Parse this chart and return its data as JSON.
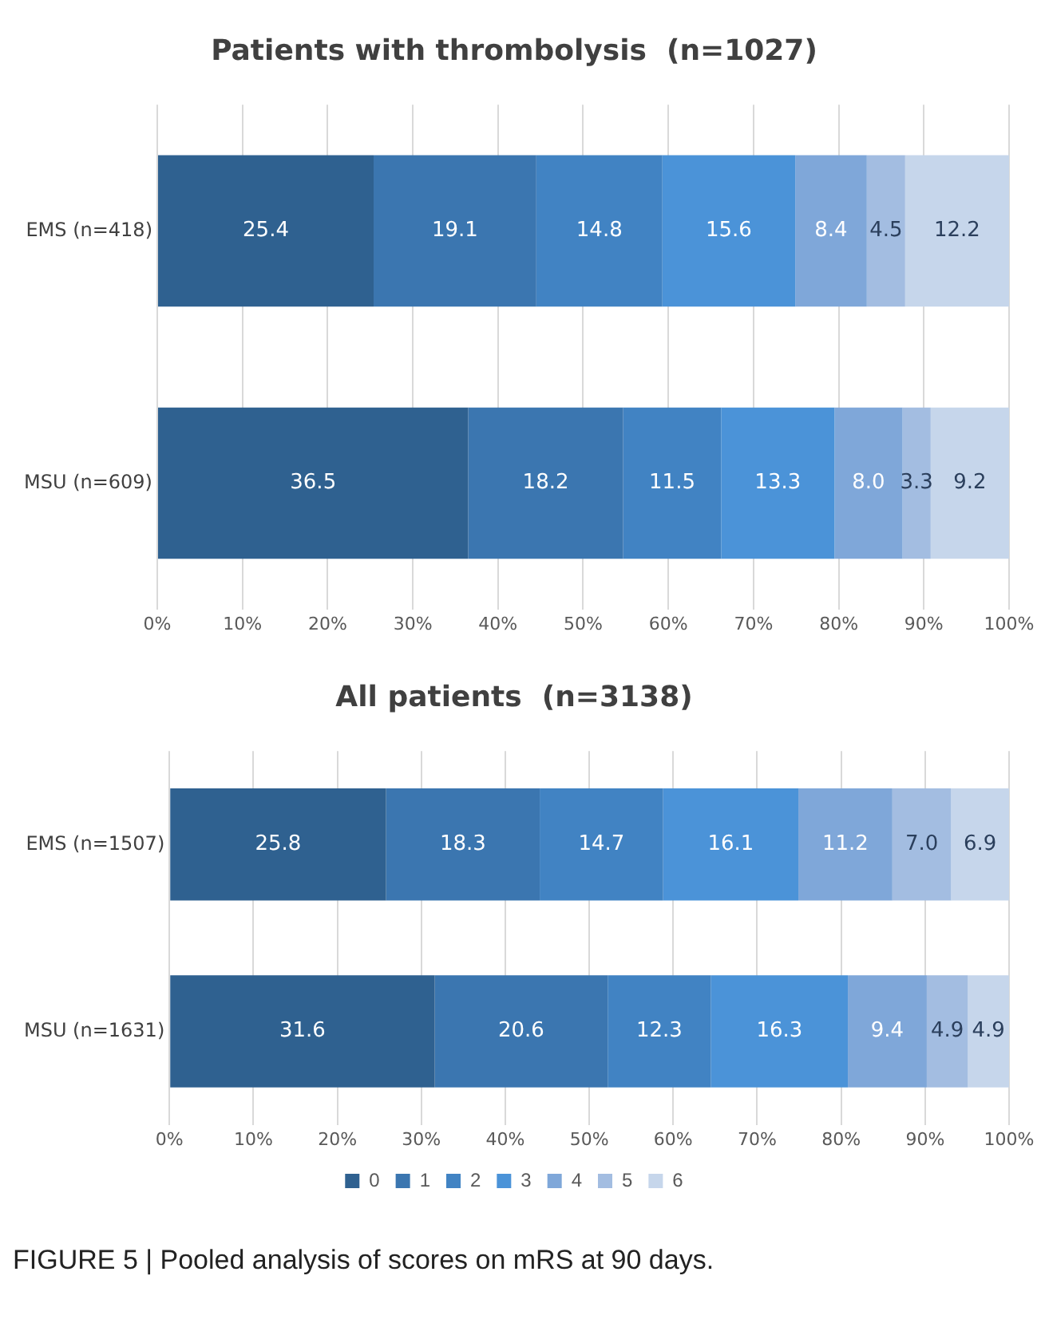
{
  "chart_data": [
    {
      "type": "bar",
      "title": "Patients with thrombolysis  (n=1027)",
      "orientation": "horizontal",
      "stacked": true,
      "categories": [
        "EMS (n=418)",
        "MSU (n=609)"
      ],
      "series": [
        {
          "color": "#2f6190",
          "values": [
            25.4,
            36.5
          ],
          "value_labels": [
            "25.4",
            "36.5"
          ]
        },
        {
          "color": "#3b76b0",
          "values": [
            19.1,
            18.2
          ],
          "value_labels": [
            "19.1",
            "18.2"
          ]
        },
        {
          "color": "#4183c3",
          "values": [
            14.8,
            11.5
          ],
          "value_labels": [
            "14.8",
            "11.5"
          ]
        },
        {
          "color": "#4b93d8",
          "values": [
            15.6,
            13.3
          ],
          "value_labels": [
            "15.6",
            "13.3"
          ]
        },
        {
          "color": "#7fa7d9",
          "values": [
            8.4,
            8.0
          ],
          "value_labels": [
            "8.4",
            "8.0"
          ]
        },
        {
          "color": "#a3bde1",
          "values": [
            4.5,
            3.3
          ],
          "value_labels": [
            "4.5",
            "3.3"
          ]
        },
        {
          "color": "#c6d6eb",
          "values": [
            12.2,
            9.2
          ],
          "value_labels": [
            "12.2",
            "9.2"
          ]
        }
      ],
      "xlim": [
        0,
        100
      ],
      "xticks": [
        {
          "value": 0,
          "label": "0%"
        },
        {
          "value": 10,
          "label": "10%"
        },
        {
          "value": 20,
          "label": "20%"
        },
        {
          "value": 30,
          "label": "30%"
        },
        {
          "value": 40,
          "label": "40%"
        },
        {
          "value": 50,
          "label": "50%"
        },
        {
          "value": 60,
          "label": "60%"
        },
        {
          "value": 70,
          "label": "70%"
        },
        {
          "value": 80,
          "label": "80%"
        },
        {
          "value": 90,
          "label": "90%"
        },
        {
          "value": 100,
          "label": "100%"
        }
      ],
      "grid": "x"
    },
    {
      "type": "bar",
      "title": "All patients  (n=3138)",
      "orientation": "horizontal",
      "stacked": true,
      "categories": [
        "EMS (n=1507)",
        "MSU (n=1631)"
      ],
      "series": [
        {
          "name": "0",
          "color": "#2f6190",
          "values": [
            25.8,
            31.6
          ],
          "value_labels": [
            "25.8",
            "31.6"
          ]
        },
        {
          "name": "1",
          "color": "#3b76b0",
          "values": [
            18.3,
            20.6
          ],
          "value_labels": [
            "18.3",
            "20.6"
          ]
        },
        {
          "name": "2",
          "color": "#4183c3",
          "values": [
            14.7,
            12.3
          ],
          "value_labels": [
            "14.7",
            "12.3"
          ]
        },
        {
          "name": "3",
          "color": "#4b93d8",
          "values": [
            16.1,
            16.3
          ],
          "value_labels": [
            "16.1",
            "16.3"
          ]
        },
        {
          "name": "4",
          "color": "#7fa7d9",
          "values": [
            11.2,
            9.4
          ],
          "value_labels": [
            "11.2",
            "9.4"
          ]
        },
        {
          "name": "5",
          "color": "#a3bde1",
          "values": [
            7.0,
            4.9
          ],
          "value_labels": [
            "7.0",
            "4.9"
          ]
        },
        {
          "name": "6",
          "color": "#c6d6eb",
          "values": [
            6.9,
            4.9
          ],
          "value_labels": [
            "6.9",
            "4.9"
          ]
        }
      ],
      "xlim": [
        0,
        100
      ],
      "xticks": [
        {
          "value": 0,
          "label": "0%"
        },
        {
          "value": 10,
          "label": "10%"
        },
        {
          "value": 20,
          "label": "20%"
        },
        {
          "value": 30,
          "label": "30%"
        },
        {
          "value": 40,
          "label": "40%"
        },
        {
          "value": 50,
          "label": "50%"
        },
        {
          "value": 60,
          "label": "60%"
        },
        {
          "value": 70,
          "label": "70%"
        },
        {
          "value": 80,
          "label": "80%"
        },
        {
          "value": 90,
          "label": "90%"
        },
        {
          "value": 100,
          "label": "100%"
        }
      ],
      "grid": "x",
      "legend": "bottom",
      "annotations": [
        "FIGURE 5 | Pooled analysis of scores on mRS at 90 days."
      ]
    }
  ]
}
